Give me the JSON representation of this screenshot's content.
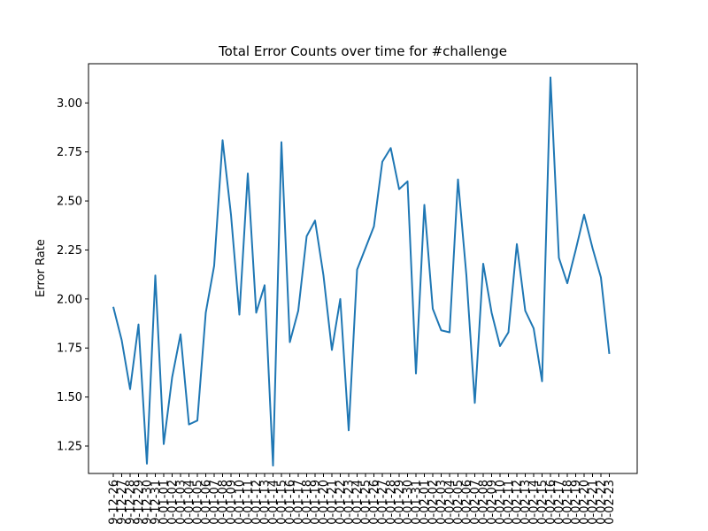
{
  "chart_data": {
    "type": "line",
    "title": "Total Error Counts over time for #challenge",
    "xlabel": "",
    "ylabel": "Error Rate",
    "ylim": [
      1.11,
      3.2
    ],
    "y_ticks": [
      "1.25",
      "1.50",
      "1.75",
      "2.00",
      "2.25",
      "2.50",
      "2.75",
      "3.00"
    ],
    "grid": false,
    "color": "#1f77b4",
    "x": [
      "2019-12-26",
      "2019-12-27",
      "2019-12-28",
      "2019-12-29",
      "2019-12-30",
      "2019-12-31",
      "2020-01-01",
      "2020-01-02",
      "2020-01-03",
      "2020-01-04",
      "2020-01-05",
      "2020-01-06",
      "2020-01-07",
      "2020-01-08",
      "2020-01-09",
      "2020-01-10",
      "2020-01-11",
      "2020-01-12",
      "2020-01-13",
      "2020-01-14",
      "2020-01-15",
      "2020-01-16",
      "2020-01-17",
      "2020-01-18",
      "2020-01-19",
      "2020-01-20",
      "2020-01-21",
      "2020-01-22",
      "2020-01-23",
      "2020-01-24",
      "2020-01-25",
      "2020-01-26",
      "2020-01-27",
      "2020-01-28",
      "2020-01-29",
      "2020-01-30",
      "2020-01-31",
      "2020-02-01",
      "2020-02-02",
      "2020-02-03",
      "2020-02-04",
      "2020-02-05",
      "2020-02-06",
      "2020-02-07",
      "2020-02-08",
      "2020-02-09",
      "2020-02-10",
      "2020-02-11",
      "2020-02-12",
      "2020-02-13",
      "2020-02-14",
      "2020-02-15",
      "2020-02-16",
      "2020-02-17",
      "2020-02-18",
      "2020-02-19",
      "2020-02-20",
      "2020-02-21",
      "2020-02-22",
      "2020-02-23"
    ],
    "x_tick_labels": [
      "9-12-26",
      "9-12-27",
      "9-12-28",
      "9-12-29",
      "9-12-30",
      "9-12-31",
      "0-01-01",
      "0-01-02",
      "0-01-03",
      "0-01-04",
      "0-01-05",
      "0-01-06",
      "0-01-07",
      "0-01-08",
      "0-01-09",
      "0-01-10",
      "0-01-11",
      "0-01-12",
      "0-01-13",
      "0-01-14",
      "0-01-15",
      "0-01-16",
      "0-01-17",
      "0-01-18",
      "0-01-19",
      "0-01-20",
      "0-01-21",
      "0-01-22",
      "0-01-23",
      "0-01-24",
      "0-01-25",
      "0-01-26",
      "0-01-27",
      "0-01-28",
      "0-01-29",
      "0-01-30",
      "0-01-31",
      "0-02-01",
      "0-02-02",
      "0-02-03",
      "0-02-04",
      "0-02-05",
      "0-02-06",
      "0-02-07",
      "0-02-08",
      "0-02-09",
      "0-02-10",
      "0-02-11",
      "0-02-12",
      "0-02-13",
      "0-02-14",
      "0-02-15",
      "0-02-16",
      "0-02-17",
      "0-02-18",
      "0-02-19",
      "0-02-20",
      "0-02-21",
      "0-02-22",
      "0-02-23"
    ],
    "series": [
      {
        "values": [
          1.96,
          1.79,
          1.54,
          1.87,
          1.16,
          2.12,
          1.26,
          1.6,
          1.82,
          1.36,
          1.38,
          1.93,
          2.17,
          2.81,
          2.43,
          1.92,
          2.64,
          1.93,
          2.07,
          1.15,
          2.8,
          1.78,
          1.94,
          2.32,
          2.4,
          2.12,
          1.74,
          2.0,
          1.33,
          2.15,
          2.26,
          2.37,
          2.7,
          2.77,
          2.56,
          2.6,
          1.62,
          2.48,
          1.95,
          1.84,
          1.83,
          2.61,
          2.12,
          1.47,
          2.18,
          1.93,
          1.76,
          1.83,
          2.28,
          1.94,
          1.85,
          1.58,
          3.13,
          2.21,
          2.08,
          2.25,
          2.43,
          2.26,
          2.11,
          1.72
        ]
      }
    ]
  }
}
